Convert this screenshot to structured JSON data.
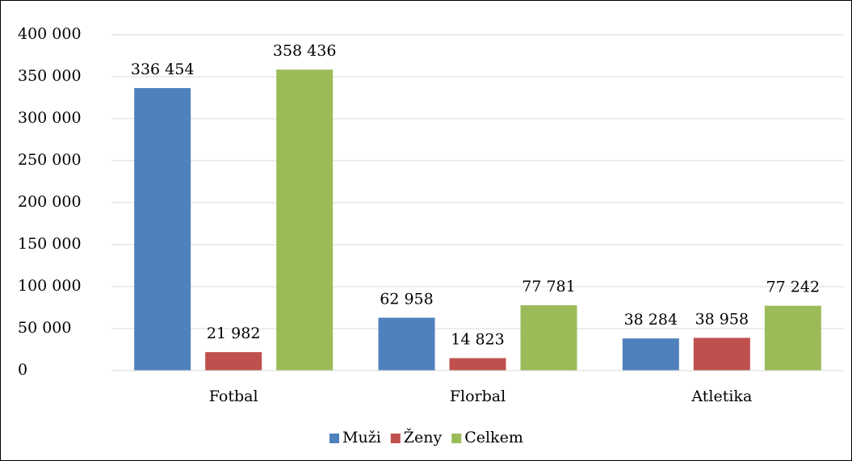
{
  "chart_data": {
    "type": "bar",
    "categories": [
      "Fotbal",
      "Florbal",
      "Atletika"
    ],
    "series": [
      {
        "name": "Muži",
        "color": "#4f81bd",
        "values": [
          336454,
          62958,
          38284
        ],
        "value_labels": [
          "336 454",
          "62 958",
          "38 284"
        ]
      },
      {
        "name": "Ženy",
        "color": "#c0504d",
        "values": [
          21982,
          14823,
          38958
        ],
        "value_labels": [
          "21 982",
          "14 823",
          "38 958"
        ]
      },
      {
        "name": "Celkem",
        "color": "#9bbb59",
        "values": [
          358436,
          77781,
          77242
        ],
        "value_labels": [
          "358 436",
          "77 781",
          "77 242"
        ]
      }
    ],
    "ylim": [
      0,
      400000
    ],
    "yticks": [
      0,
      {
        "value": 50000,
        "label": "50 000"
      },
      {
        "value": 100000,
        "label": "100 000"
      },
      {
        "value": 150000,
        "label": "150 000"
      },
      {
        "value": 200000,
        "label": "200 000"
      },
      {
        "value": 250000,
        "label": "250 000"
      },
      {
        "value": 300000,
        "label": "300 000"
      },
      {
        "value": 350000,
        "label": "350 000"
      },
      {
        "value": 400000,
        "label": "400 000"
      }
    ],
    "grid": true,
    "legend": "bottom"
  }
}
